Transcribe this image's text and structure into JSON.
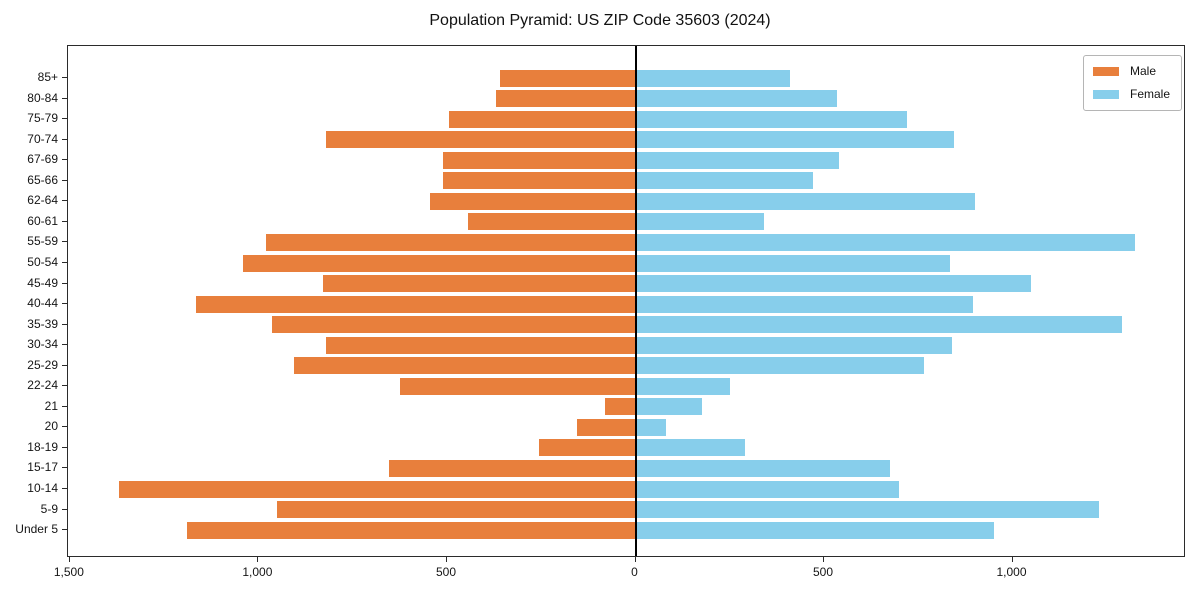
{
  "chart_data": {
    "type": "bar",
    "subtype": "population-pyramid",
    "title": "Population Pyramid: US ZIP Code 35603 (2024)",
    "orientation": "horizontal",
    "grid": false,
    "zero_line": true,
    "categories": [
      "85+",
      "80-84",
      "75-79",
      "70-74",
      "67-69",
      "65-66",
      "62-64",
      "60-61",
      "55-59",
      "50-54",
      "45-49",
      "40-44",
      "35-39",
      "30-34",
      "25-29",
      "22-24",
      "21",
      "20",
      "18-19",
      "15-17",
      "10-14",
      "5-9",
      "Under 5"
    ],
    "series": [
      {
        "name": "Male",
        "side": "left",
        "color": "#e87f3c",
        "values": [
          360,
          370,
          495,
          820,
          510,
          510,
          545,
          445,
          980,
          1040,
          830,
          1165,
          965,
          820,
          905,
          625,
          80,
          155,
          255,
          655,
          1370,
          950,
          1190
        ]
      },
      {
        "name": "Female",
        "side": "right",
        "color": "#87ceeb",
        "values": [
          410,
          535,
          720,
          845,
          540,
          470,
          900,
          340,
          1325,
          835,
          1050,
          895,
          1290,
          840,
          765,
          250,
          175,
          80,
          290,
          675,
          700,
          1230,
          950
        ]
      }
    ],
    "x_axis": {
      "min": -1505,
      "max": 1460,
      "tick_values": [
        -1500,
        -1000,
        -500,
        0,
        500,
        1000
      ],
      "tick_labels": [
        "1,500",
        "1,000",
        "500",
        "0",
        "500",
        "1,000"
      ]
    },
    "legend": {
      "position": "upper-right",
      "entries": [
        "Male",
        "Female"
      ]
    }
  }
}
